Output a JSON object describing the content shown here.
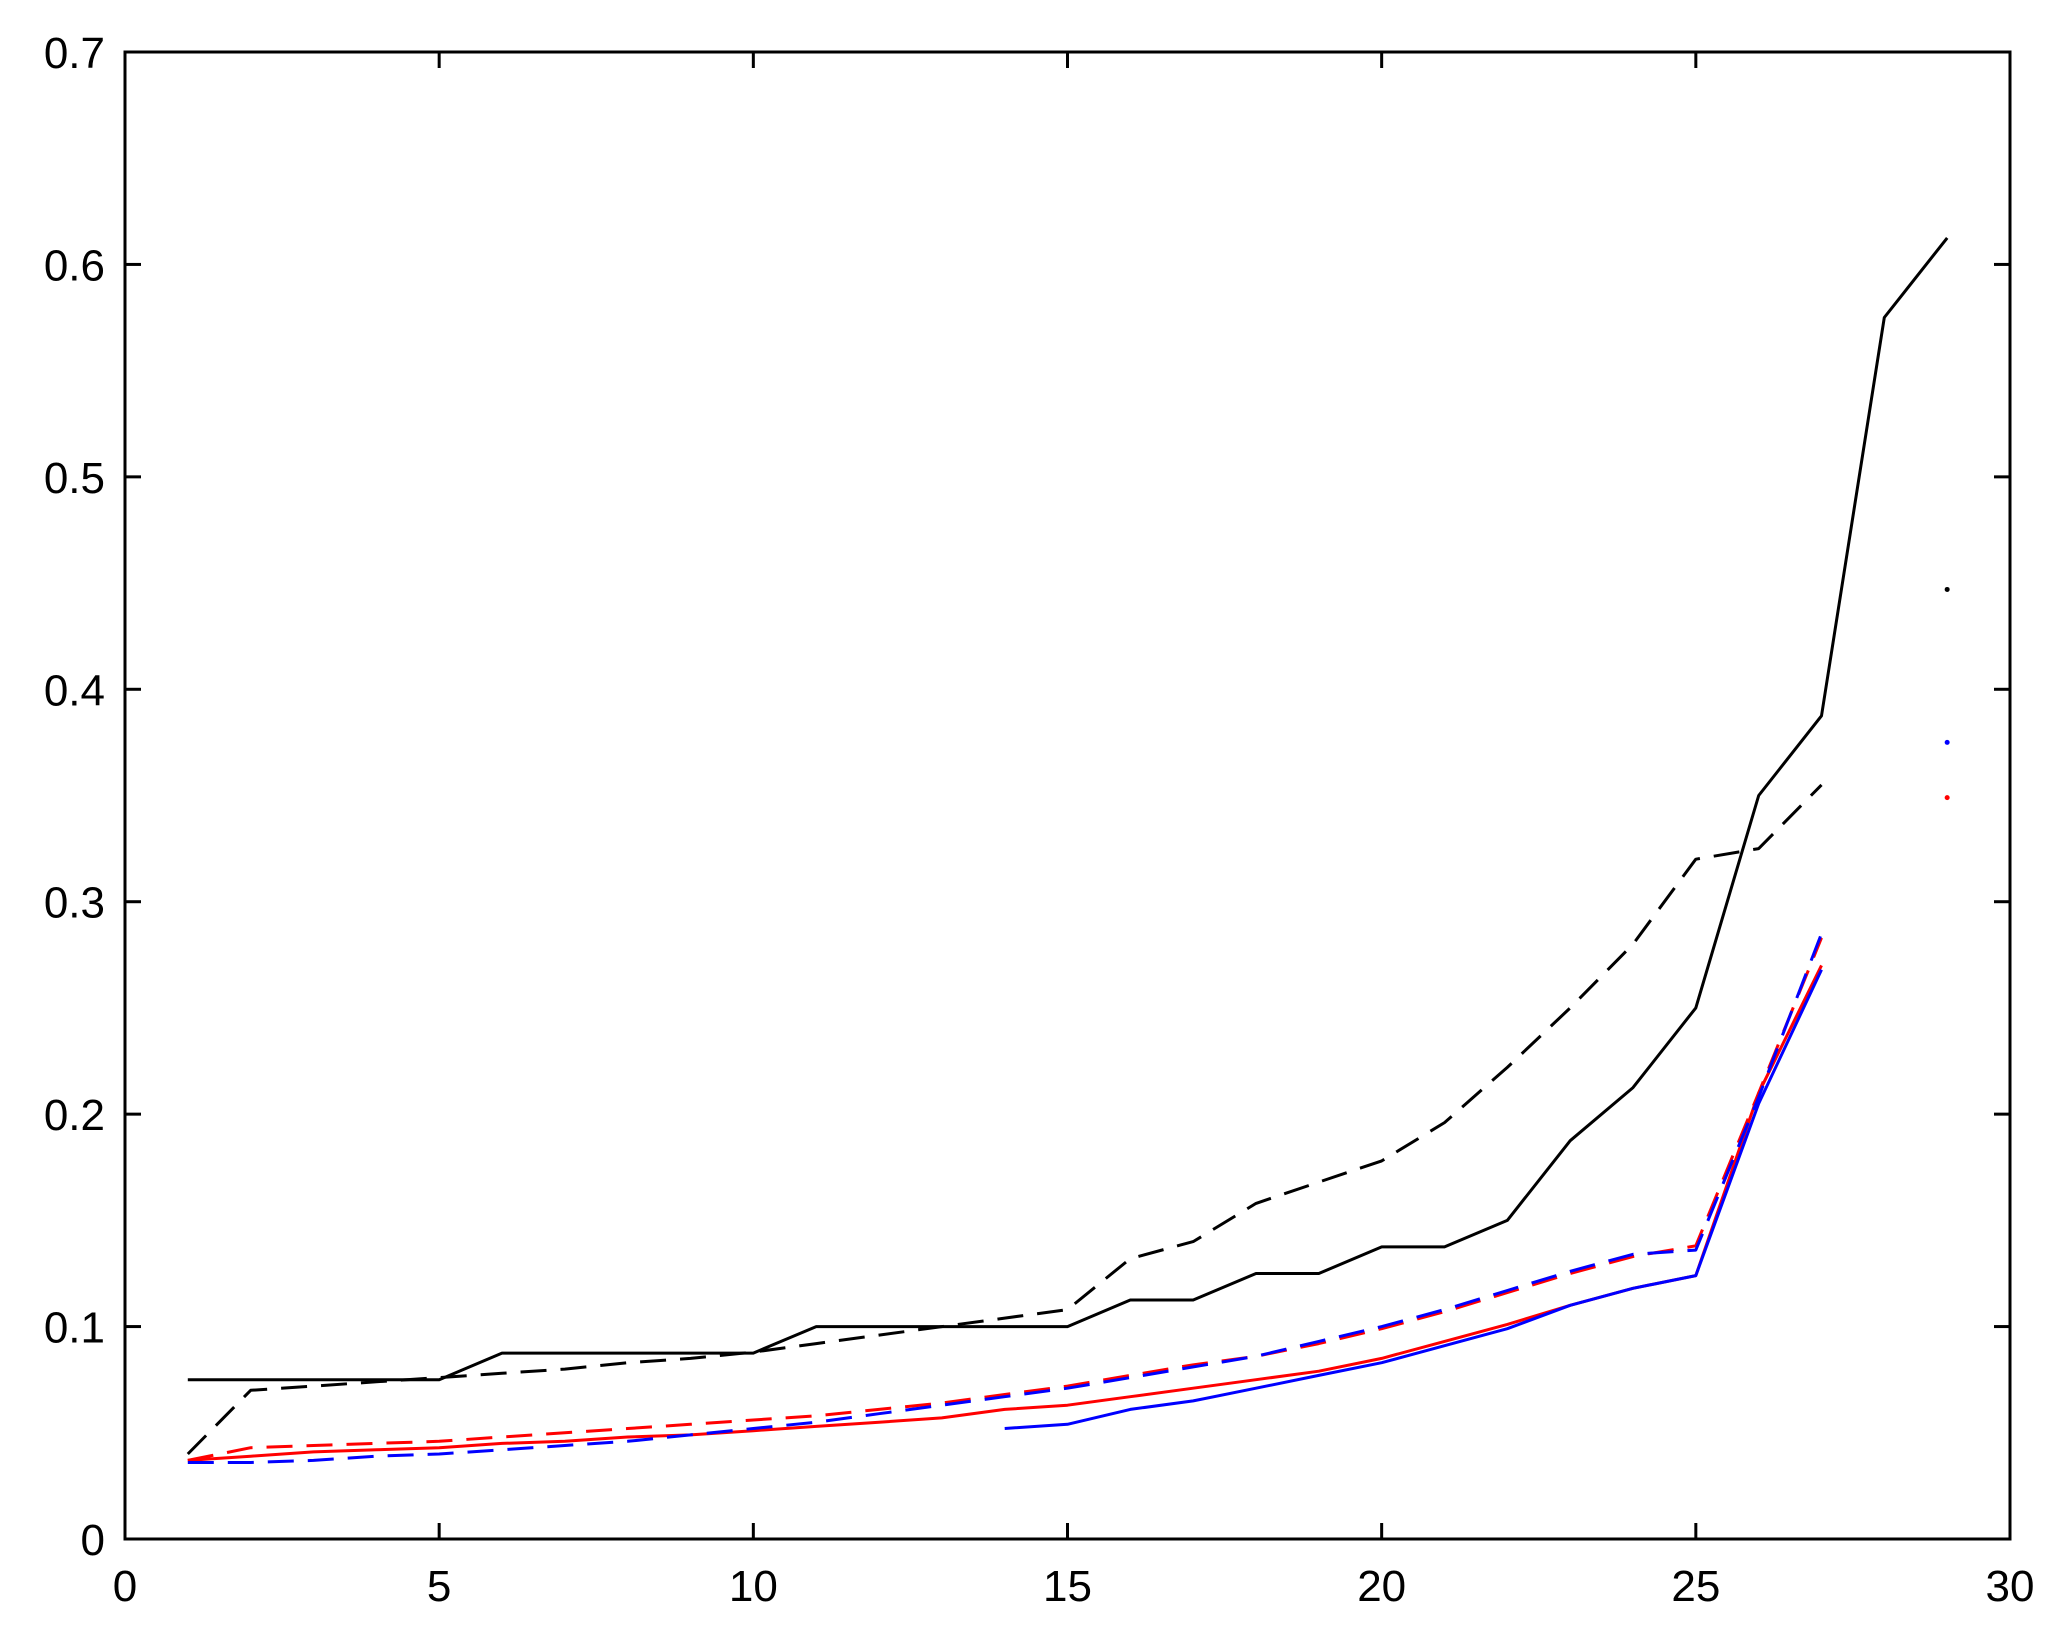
{
  "chart_data": {
    "type": "line",
    "title": "",
    "xlabel": "",
    "ylabel": "",
    "xlim": [
      0,
      30
    ],
    "ylim": [
      0,
      0.7
    ],
    "grid": false,
    "legend": "none",
    "x_ticks": [
      0,
      5,
      10,
      15,
      20,
      25,
      30
    ],
    "x_tick_labels": [
      "0",
      "5",
      "10",
      "15",
      "20",
      "25",
      "30"
    ],
    "y_ticks": [
      0,
      0.1,
      0.2,
      0.3,
      0.4,
      0.5,
      0.6,
      0.7
    ],
    "y_tick_labels": [
      "0",
      "0.1",
      "0.2",
      "0.3",
      "0.4",
      "0.5",
      "0.6",
      "0.7"
    ],
    "series": [
      {
        "color": "#000000",
        "style": "solid",
        "x": [
          1,
          5,
          6,
          10,
          11,
          15,
          16,
          17,
          18,
          19,
          20,
          21,
          22,
          23,
          24,
          25,
          26,
          27,
          28,
          29
        ],
        "y": [
          0.075,
          0.075,
          0.0875,
          0.0875,
          0.1,
          0.1,
          0.1125,
          0.1125,
          0.125,
          0.125,
          0.1375,
          0.1375,
          0.15,
          0.1875,
          0.2125,
          0.25,
          0.35,
          0.3875,
          0.575,
          0.6125
        ]
      },
      {
        "color": "#000000",
        "style": "dashed",
        "x": [
          1,
          2,
          3,
          4,
          5,
          6,
          7,
          8,
          9,
          10,
          11,
          12,
          13,
          14,
          15,
          16,
          17,
          18,
          19,
          20,
          21,
          22,
          23,
          24,
          25,
          26,
          27
        ],
        "y": [
          0.04,
          0.07,
          0.072,
          0.074,
          0.076,
          0.078,
          0.08,
          0.083,
          0.085,
          0.088,
          0.092,
          0.096,
          0.1,
          0.104,
          0.108,
          0.132,
          0.14,
          0.158,
          0.168,
          0.178,
          0.196,
          0.222,
          0.25,
          0.28,
          0.32,
          0.325,
          0.355
        ]
      },
      {
        "color": "#ff0000",
        "style": "solid",
        "x": [
          1,
          2,
          3,
          4,
          5,
          6,
          7,
          8,
          9,
          10,
          11,
          12,
          13,
          14,
          15,
          16,
          17,
          18,
          19,
          20,
          21,
          22,
          23,
          24,
          25,
          26,
          27
        ],
        "y": [
          0.037,
          0.039,
          0.041,
          0.042,
          0.043,
          0.045,
          0.046,
          0.048,
          0.049,
          0.051,
          0.053,
          0.055,
          0.057,
          0.061,
          0.063,
          0.067,
          0.071,
          0.075,
          0.079,
          0.085,
          0.093,
          0.101,
          0.11,
          0.118,
          0.124,
          0.21,
          0.27
        ]
      },
      {
        "color": "#ff0000",
        "style": "dashed",
        "x": [
          1,
          2,
          3,
          4,
          5,
          6,
          7,
          8,
          9,
          10,
          11,
          12,
          13,
          14,
          15,
          16,
          17,
          18,
          19,
          20,
          21,
          22,
          23,
          24,
          25,
          26,
          27
        ],
        "y": [
          0.037,
          0.043,
          0.044,
          0.045,
          0.046,
          0.048,
          0.05,
          0.052,
          0.054,
          0.056,
          0.058,
          0.061,
          0.064,
          0.068,
          0.072,
          0.077,
          0.082,
          0.086,
          0.092,
          0.099,
          0.107,
          0.116,
          0.125,
          0.133,
          0.138,
          0.21,
          0.283
        ]
      },
      {
        "color": "#0000ff",
        "style": "solid",
        "x": [
          14,
          15,
          16,
          17,
          18,
          19,
          20,
          21,
          22,
          23,
          24,
          25,
          26,
          27
        ],
        "y": [
          0.052,
          0.054,
          0.061,
          0.065,
          0.071,
          0.077,
          0.083,
          0.091,
          0.099,
          0.11,
          0.118,
          0.124,
          0.205,
          0.268
        ]
      },
      {
        "color": "#0000ff",
        "style": "dashed",
        "x": [
          1,
          2,
          3,
          4,
          5,
          6,
          7,
          8,
          9,
          10,
          11,
          12,
          13,
          14,
          15,
          16,
          17,
          18,
          19,
          20,
          21,
          22,
          23,
          24,
          25,
          26,
          27
        ],
        "y": [
          0.036,
          0.036,
          0.037,
          0.039,
          0.04,
          0.042,
          0.044,
          0.046,
          0.049,
          0.052,
          0.055,
          0.059,
          0.063,
          0.067,
          0.071,
          0.076,
          0.081,
          0.086,
          0.093,
          0.1,
          0.108,
          0.117,
          0.126,
          0.134,
          0.136,
          0.208,
          0.285
        ]
      },
      {
        "color": "#000000",
        "style": "point",
        "x": [
          29
        ],
        "y": [
          0.447
        ]
      },
      {
        "color": "#0000ff",
        "style": "point",
        "x": [
          29
        ],
        "y": [
          0.375
        ]
      },
      {
        "color": "#ff0000",
        "style": "point",
        "x": [
          29
        ],
        "y": [
          0.349
        ]
      }
    ]
  }
}
